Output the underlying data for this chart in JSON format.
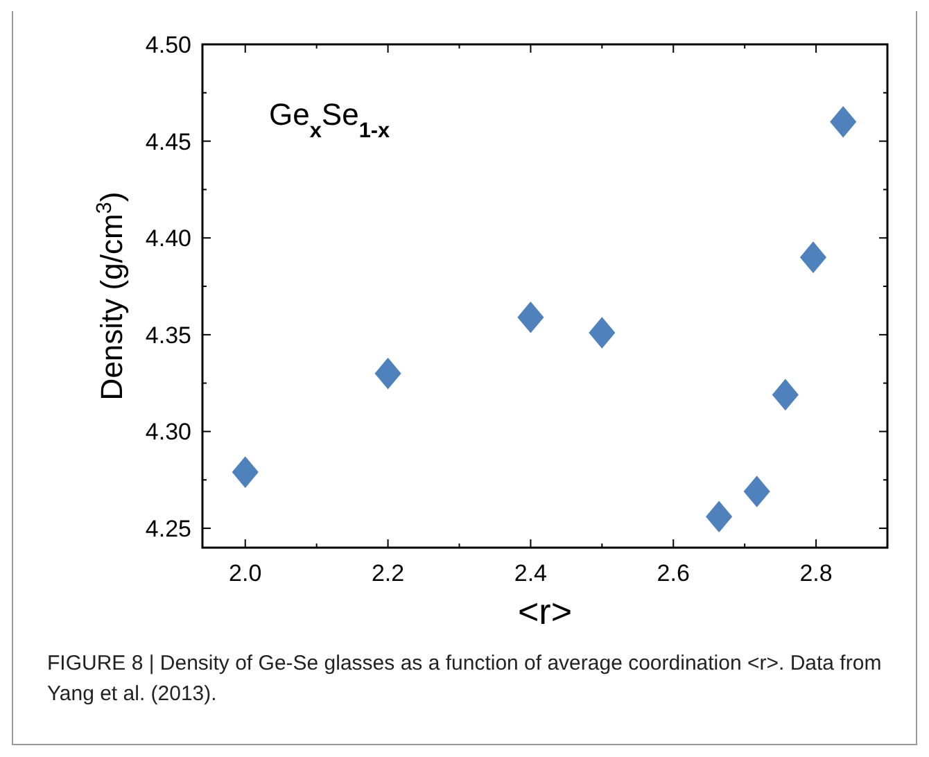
{
  "chart_data": {
    "type": "scatter",
    "xlabel": "<r>",
    "ylabel": "Density (g/cm$^{3}$)",
    "marker": "diamond",
    "grid": false,
    "xlim": [
      1.94,
      2.9
    ],
    "xticks": [
      {
        "value": 2.0,
        "label": "2.0"
      },
      {
        "value": 2.2,
        "label": "2.2"
      },
      {
        "value": 2.4,
        "label": "2.4"
      },
      {
        "value": 2.6,
        "label": "2.6"
      },
      {
        "value": 2.8,
        "label": "2.8"
      }
    ],
    "ylim": [
      4.24,
      4.5
    ],
    "yticks": [
      {
        "value": 4.25,
        "label": "4.25"
      },
      {
        "value": 4.3,
        "label": "4.30"
      },
      {
        "value": 4.35,
        "label": "4.35"
      },
      {
        "value": 4.4,
        "label": "4.40"
      },
      {
        "value": 4.45,
        "label": "4.45"
      },
      {
        "value": 4.5,
        "label": "4.50"
      }
    ],
    "x": [
      2.0,
      2.2,
      2.4,
      2.5,
      2.664,
      2.717,
      2.757,
      2.796,
      2.838
    ],
    "series": [
      {
        "color": "#4f81bd",
        "values": [
          4.279,
          4.33,
          4.359,
          4.351,
          4.256,
          4.269,
          4.319,
          4.39,
          4.46
        ]
      }
    ],
    "annotations": [
      "Ge$_{x}$Se$_{1-x}$",
      "FIGURE 8 | Density of Ge-Se glasses as a function of average coordination <r>. Data from Yang et al. (2013)."
    ]
  }
}
